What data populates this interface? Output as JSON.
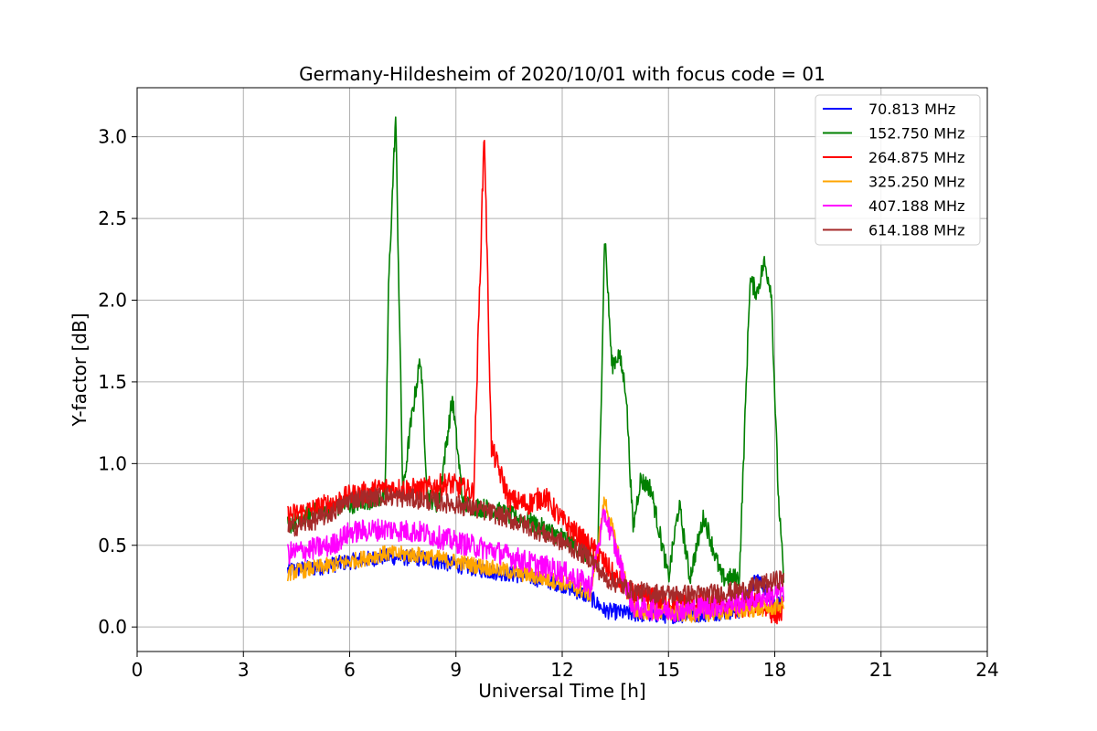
{
  "chart_data": {
    "type": "line",
    "title": "Germany-Hildesheim of 2020/10/01 with focus code = 01",
    "xlabel": "Universal Time [h]",
    "ylabel": "Y-factor [dB]",
    "xlim": [
      0,
      24
    ],
    "ylim": [
      -0.15,
      3.3
    ],
    "x_ticks": [
      0,
      3,
      6,
      9,
      12,
      15,
      18,
      21,
      24
    ],
    "x_tick_labels": [
      "0",
      "3",
      "6",
      "9",
      "12",
      "15",
      "18",
      "21",
      "24"
    ],
    "y_ticks": [
      0.0,
      0.5,
      1.0,
      1.5,
      2.0,
      2.5,
      3.0
    ],
    "y_tick_labels": [
      "0.0",
      "0.5",
      "1.0",
      "1.5",
      "2.0",
      "2.5",
      "3.0"
    ],
    "grid": true,
    "legend_position": "top-right",
    "series": [
      {
        "name": " 70.813 MHz",
        "color": "#0000ff",
        "x": [
          4.25,
          5,
          6,
          7,
          8,
          9,
          10,
          11,
          12,
          12.8,
          13.2,
          14,
          15,
          16,
          17,
          17.5,
          18,
          18.25
        ],
        "y": [
          0.35,
          0.36,
          0.4,
          0.43,
          0.42,
          0.38,
          0.34,
          0.31,
          0.26,
          0.18,
          0.1,
          0.08,
          0.07,
          0.08,
          0.1,
          0.3,
          0.15,
          0.14
        ]
      },
      {
        "name": "152.750 MHz",
        "color": "#008000",
        "x": [
          4.25,
          5,
          6,
          7,
          7.1,
          7.3,
          7.5,
          7.7,
          8.0,
          8.2,
          8.5,
          8.9,
          9.2,
          10,
          11,
          12,
          13,
          13.2,
          13.4,
          13.6,
          13.8,
          14.0,
          14.2,
          14.5,
          15.0,
          15.3,
          15.6,
          16.0,
          16.5,
          17.0,
          17.3,
          17.5,
          17.7,
          17.9,
          18.1,
          18.25
        ],
        "y": [
          0.62,
          0.7,
          0.75,
          0.8,
          2.1,
          3.13,
          0.8,
          1.2,
          1.65,
          0.8,
          0.75,
          1.4,
          0.75,
          0.72,
          0.65,
          0.55,
          0.4,
          2.42,
          1.6,
          1.67,
          1.45,
          0.6,
          0.9,
          0.85,
          0.3,
          0.75,
          0.3,
          0.68,
          0.3,
          0.3,
          2.12,
          2.05,
          2.23,
          2.07,
          0.8,
          0.3
        ]
      },
      {
        "name": "264.875 MHz",
        "color": "#ff0000",
        "x": [
          4.25,
          5,
          6,
          7,
          8,
          8.8,
          9.5,
          9.8,
          10,
          10.5,
          11,
          11.5,
          12,
          12.5,
          13,
          13.5,
          14,
          15,
          16,
          17,
          17.5,
          18,
          18.25
        ],
        "y": [
          0.68,
          0.72,
          0.8,
          0.85,
          0.84,
          0.88,
          0.82,
          3.05,
          1.1,
          0.78,
          0.75,
          0.8,
          0.65,
          0.55,
          0.45,
          0.3,
          0.2,
          0.15,
          0.15,
          0.12,
          0.15,
          0.08,
          0.1
        ]
      },
      {
        "name": "325.250 MHz",
        "color": "#ffa500",
        "x": [
          4.25,
          5,
          6,
          7,
          8,
          9,
          10,
          11,
          12,
          12.8,
          13.2,
          14,
          15,
          16,
          17,
          18,
          18.25
        ],
        "y": [
          0.33,
          0.36,
          0.4,
          0.45,
          0.44,
          0.4,
          0.36,
          0.32,
          0.27,
          0.2,
          0.78,
          0.1,
          0.08,
          0.08,
          0.1,
          0.12,
          0.14
        ]
      },
      {
        "name": "407.188 MHz",
        "color": "#ff00ff",
        "x": [
          4.25,
          5,
          5.5,
          6,
          7,
          8,
          9,
          10,
          11,
          12,
          12.8,
          13.2,
          14,
          15,
          16,
          17,
          18,
          18.25
        ],
        "y": [
          0.45,
          0.48,
          0.5,
          0.58,
          0.6,
          0.58,
          0.52,
          0.47,
          0.4,
          0.34,
          0.25,
          0.7,
          0.12,
          0.1,
          0.12,
          0.15,
          0.2,
          0.22
        ]
      },
      {
        "name": "614.188 MHz",
        "color": "#a52a2a",
        "x": [
          4.25,
          5,
          5.5,
          6,
          7,
          8,
          9,
          10,
          11,
          12,
          12.8,
          13.2,
          14,
          15,
          16,
          17,
          18,
          18.25
        ],
        "y": [
          0.6,
          0.65,
          0.7,
          0.78,
          0.8,
          0.78,
          0.75,
          0.7,
          0.62,
          0.52,
          0.42,
          0.3,
          0.22,
          0.2,
          0.2,
          0.22,
          0.28,
          0.3
        ]
      }
    ]
  }
}
